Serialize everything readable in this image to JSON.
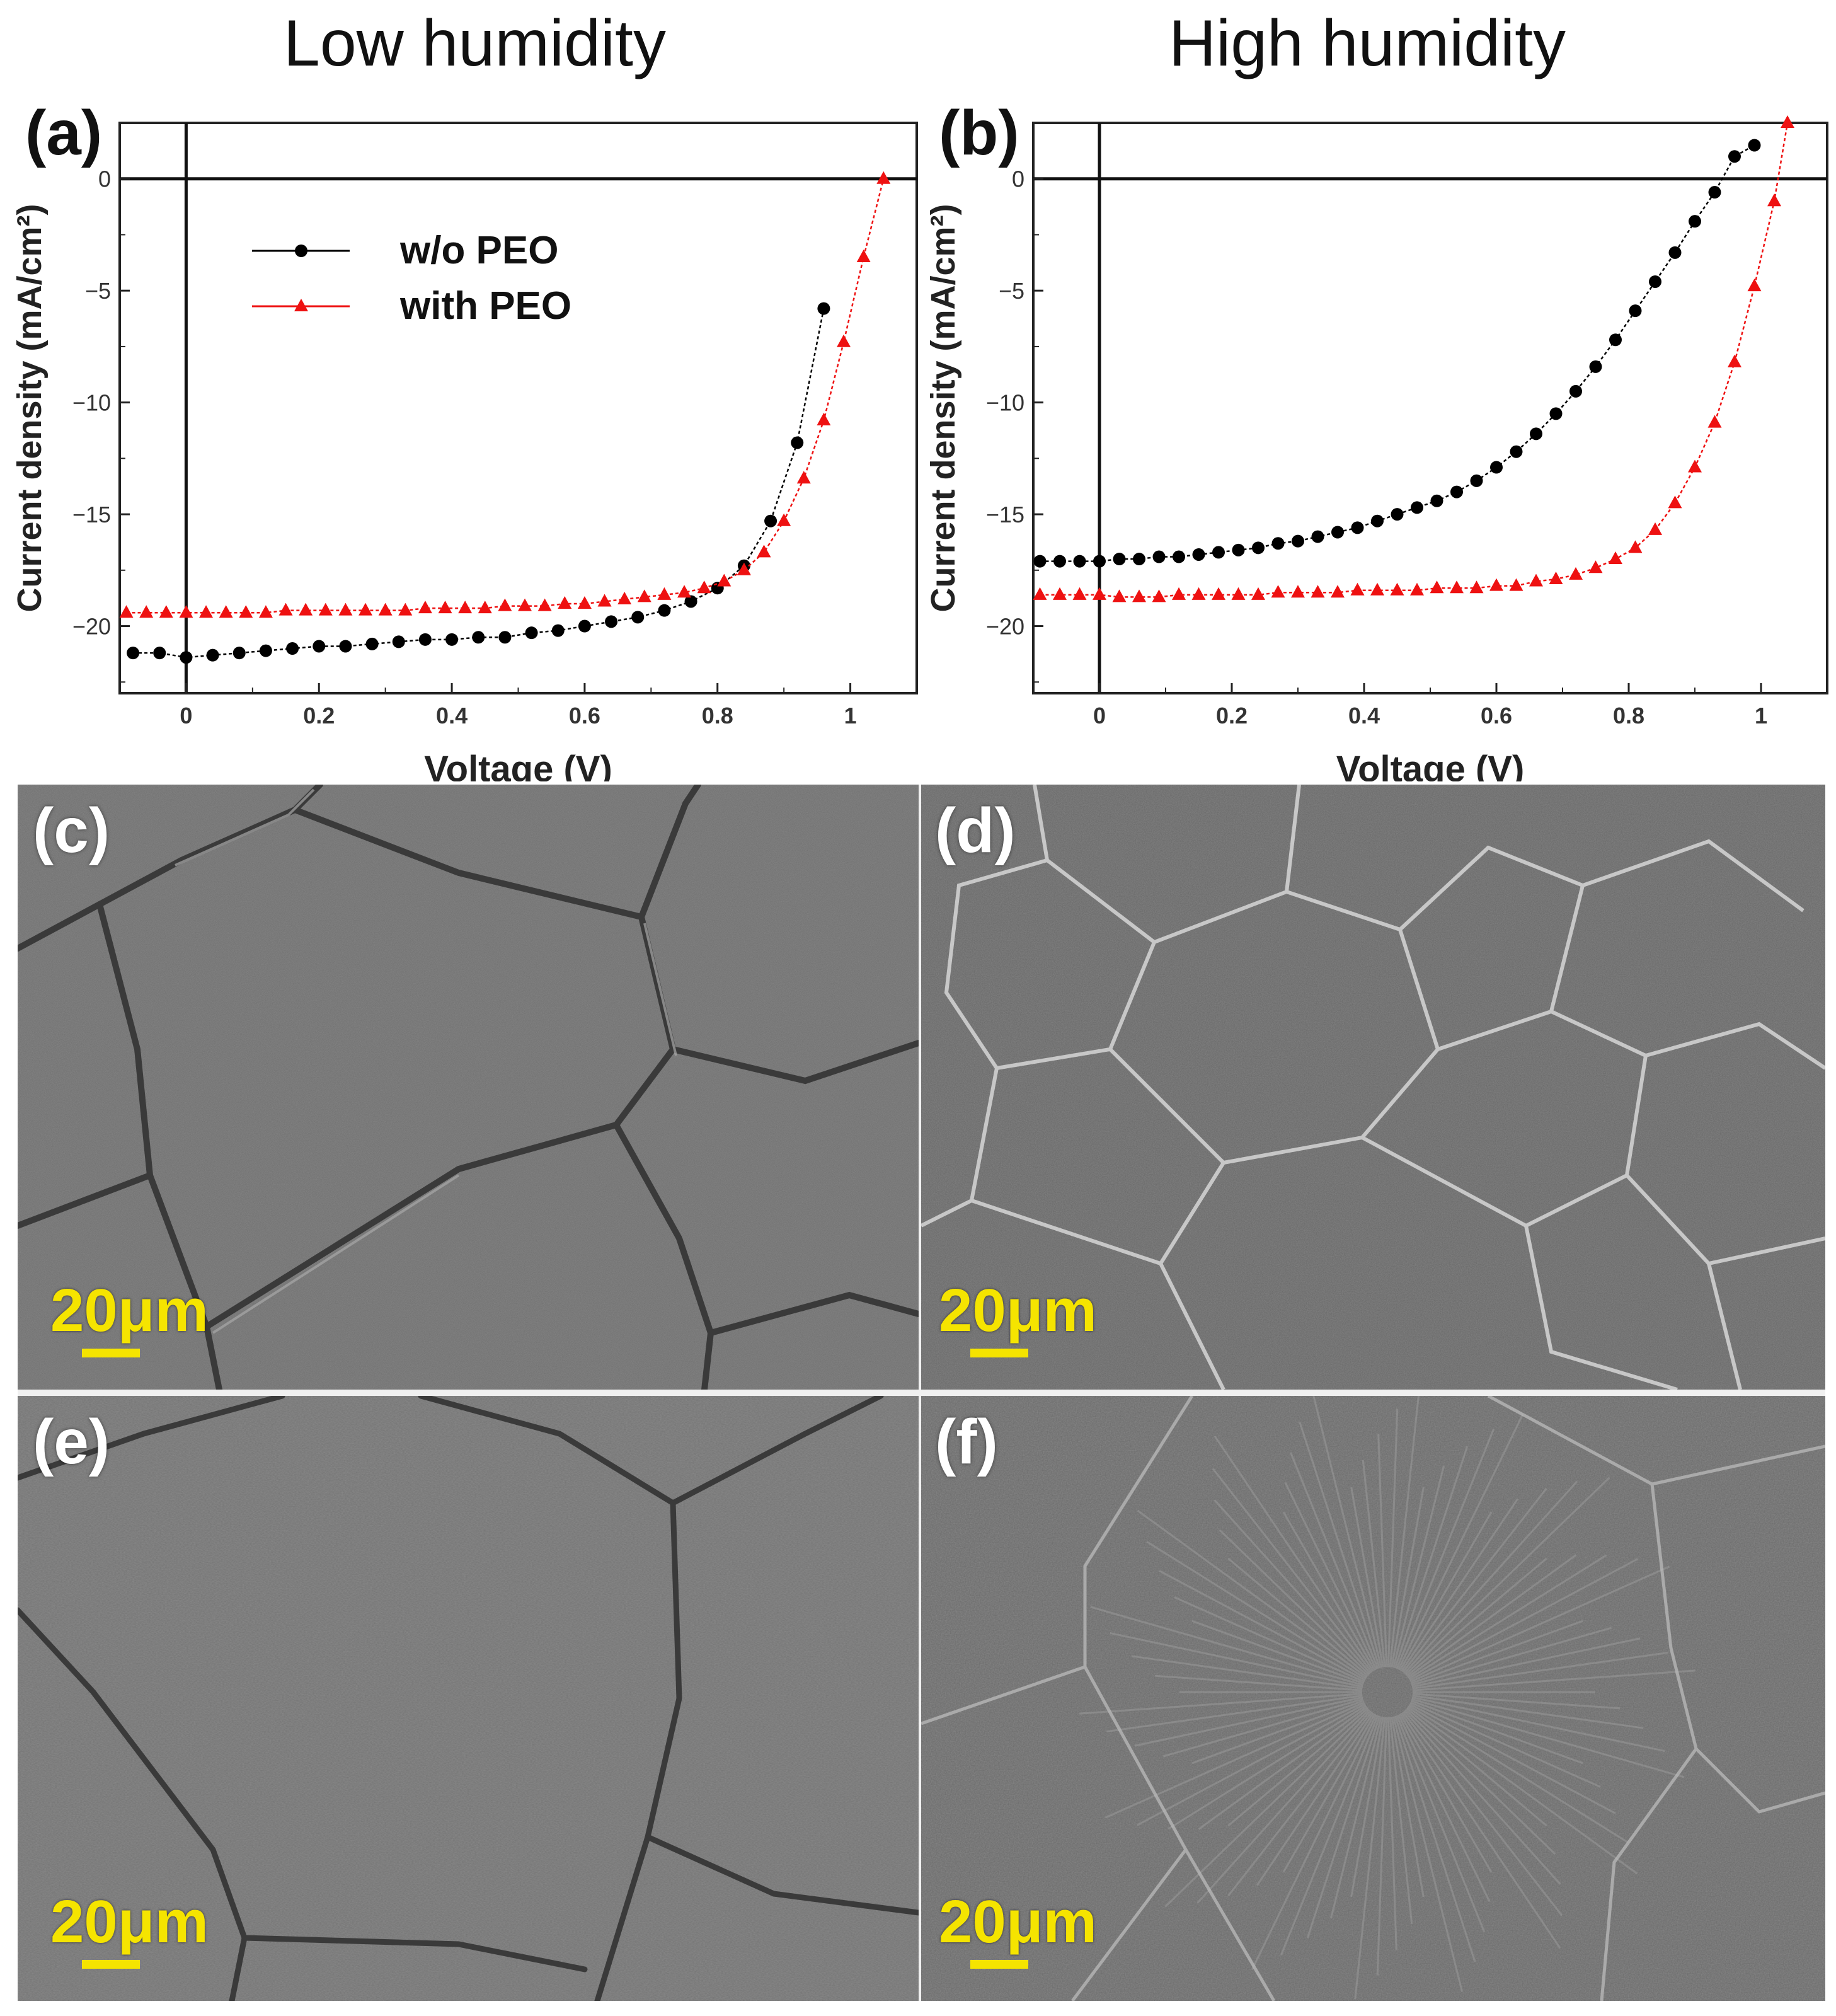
{
  "columns": {
    "left_title": "Low humidity",
    "right_title": "High humidity"
  },
  "chart_data": [
    {
      "type": "line",
      "panel_label": "(a)",
      "xlabel": "Voltage (V)",
      "ylabel": "Current density (mA/cm²)",
      "xlim": [
        -0.1,
        1.1
      ],
      "ylim": [
        -23,
        2.5
      ],
      "xticks": [
        0,
        0.2,
        0.4,
        0.6,
        0.8,
        1
      ],
      "xtick_labels": [
        "0",
        "0.2",
        "0.4",
        "0.6",
        "0.8",
        "1"
      ],
      "yticks": [
        0,
        -5,
        -10,
        -15,
        -20
      ],
      "ytick_labels": [
        "0",
        "-5",
        "-10",
        "-15",
        "-20"
      ],
      "legend": {
        "placement": "top-left",
        "entries": [
          "w/o PEO",
          "with PEO"
        ]
      },
      "series": [
        {
          "name": "w/o PEO",
          "color": "#000000",
          "marker": "circle",
          "x": [
            -0.08,
            -0.04,
            0.0,
            0.04,
            0.08,
            0.12,
            0.16,
            0.2,
            0.24,
            0.28,
            0.32,
            0.36,
            0.4,
            0.44,
            0.48,
            0.52,
            0.56,
            0.6,
            0.64,
            0.68,
            0.72,
            0.76,
            0.8,
            0.84,
            0.88,
            0.92,
            0.96
          ],
          "y": [
            -21.2,
            -21.2,
            -21.4,
            -21.3,
            -21.2,
            -21.1,
            -21.0,
            -20.9,
            -20.9,
            -20.8,
            -20.7,
            -20.6,
            -20.6,
            -20.5,
            -20.5,
            -20.3,
            -20.2,
            -20.0,
            -19.8,
            -19.6,
            -19.3,
            -18.9,
            -18.3,
            -17.3,
            -15.3,
            -11.8,
            -5.8
          ]
        },
        {
          "name": "with PEO",
          "color": "#ee1111",
          "marker": "triangle",
          "x": [
            -0.09,
            -0.06,
            -0.03,
            0.0,
            0.03,
            0.06,
            0.09,
            0.12,
            0.15,
            0.18,
            0.21,
            0.24,
            0.27,
            0.3,
            0.33,
            0.36,
            0.39,
            0.42,
            0.45,
            0.48,
            0.51,
            0.54,
            0.57,
            0.6,
            0.63,
            0.66,
            0.69,
            0.72,
            0.75,
            0.78,
            0.81,
            0.84,
            0.87,
            0.9,
            0.93,
            0.96,
            0.99,
            1.02,
            1.05
          ],
          "y": [
            -19.4,
            -19.4,
            -19.4,
            -19.4,
            -19.4,
            -19.4,
            -19.4,
            -19.4,
            -19.3,
            -19.3,
            -19.3,
            -19.3,
            -19.3,
            -19.3,
            -19.3,
            -19.2,
            -19.2,
            -19.2,
            -19.2,
            -19.1,
            -19.1,
            -19.1,
            -19.0,
            -19.0,
            -18.9,
            -18.8,
            -18.7,
            -18.6,
            -18.5,
            -18.3,
            -18.0,
            -17.5,
            -16.7,
            -15.3,
            -13.4,
            -10.8,
            -7.3,
            -3.5,
            0.0
          ]
        }
      ]
    },
    {
      "type": "line",
      "panel_label": "(b)",
      "xlabel": "Voltage (V)",
      "ylabel": "Current density (mA/cm²)",
      "xlim": [
        -0.1,
        1.1
      ],
      "ylim": [
        -23,
        2.5
      ],
      "xticks": [
        0,
        0.2,
        0.4,
        0.6,
        0.8,
        1
      ],
      "xtick_labels": [
        "0",
        "0.2",
        "0.4",
        "0.6",
        "0.8",
        "1"
      ],
      "yticks": [
        0,
        -5,
        -10,
        -15,
        -20
      ],
      "ytick_labels": [
        "0",
        "-5",
        "-10",
        "-15",
        "-20"
      ],
      "series": [
        {
          "name": "w/o PEO",
          "color": "#000000",
          "marker": "circle",
          "x": [
            -0.09,
            -0.06,
            -0.03,
            0.0,
            0.03,
            0.06,
            0.09,
            0.12,
            0.15,
            0.18,
            0.21,
            0.24,
            0.27,
            0.3,
            0.33,
            0.36,
            0.39,
            0.42,
            0.45,
            0.48,
            0.51,
            0.54,
            0.57,
            0.6,
            0.63,
            0.66,
            0.69,
            0.72,
            0.75,
            0.78,
            0.81,
            0.84,
            0.87,
            0.9,
            0.93,
            0.96,
            0.99
          ],
          "y": [
            -17.1,
            -17.1,
            -17.1,
            -17.1,
            -17.0,
            -17.0,
            -16.9,
            -16.9,
            -16.8,
            -16.7,
            -16.6,
            -16.5,
            -16.3,
            -16.2,
            -16.0,
            -15.8,
            -15.6,
            -15.3,
            -15.0,
            -14.7,
            -14.4,
            -14.0,
            -13.5,
            -12.9,
            -12.2,
            -11.4,
            -10.5,
            -9.5,
            -8.4,
            -7.2,
            -5.9,
            -4.6,
            -3.3,
            -1.9,
            -0.6,
            1.0,
            1.5
          ]
        },
        {
          "name": "with PEO",
          "color": "#ee1111",
          "marker": "triangle",
          "x": [
            -0.09,
            -0.06,
            -0.03,
            0.0,
            0.03,
            0.06,
            0.09,
            0.12,
            0.15,
            0.18,
            0.21,
            0.24,
            0.27,
            0.3,
            0.33,
            0.36,
            0.39,
            0.42,
            0.45,
            0.48,
            0.51,
            0.54,
            0.57,
            0.6,
            0.63,
            0.66,
            0.69,
            0.72,
            0.75,
            0.78,
            0.81,
            0.84,
            0.87,
            0.9,
            0.93,
            0.96,
            0.99,
            1.02,
            1.04
          ],
          "y": [
            -18.6,
            -18.6,
            -18.6,
            -18.6,
            -18.7,
            -18.7,
            -18.7,
            -18.6,
            -18.6,
            -18.6,
            -18.6,
            -18.6,
            -18.5,
            -18.5,
            -18.5,
            -18.5,
            -18.4,
            -18.4,
            -18.4,
            -18.4,
            -18.3,
            -18.3,
            -18.3,
            -18.2,
            -18.2,
            -18.0,
            -17.9,
            -17.7,
            -17.4,
            -17.0,
            -16.5,
            -15.7,
            -14.5,
            -12.9,
            -10.9,
            -8.2,
            -4.8,
            -1.0,
            2.5
          ]
        }
      ]
    }
  ],
  "sem_panels": [
    {
      "label": "(c)",
      "scale": "20μm",
      "style": "dark-cracks-coarse"
    },
    {
      "label": "(d)",
      "scale": "20μm",
      "style": "bright-boundaries-small"
    },
    {
      "label": "(e)",
      "scale": "20μm",
      "style": "dark-cracks-radial"
    },
    {
      "label": "(f)",
      "scale": "20μm",
      "style": "radial-large"
    }
  ]
}
